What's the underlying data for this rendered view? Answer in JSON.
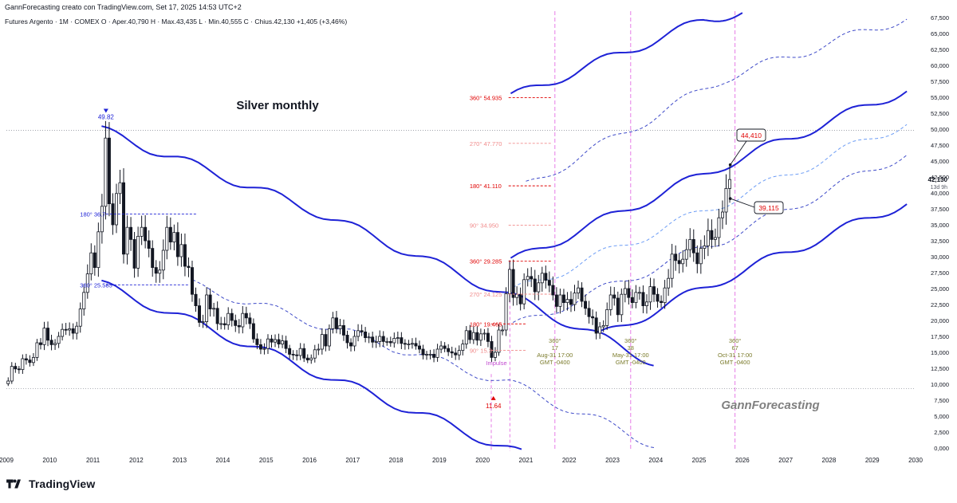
{
  "header": {
    "caption": "GannForecasting creato con TradingView.com, Set 17, 2025 14:53 UTC+2",
    "ohlc": "Futures Argento · 1M · COMEX  O · Aper.40,790  H · Max.43,435  L · Min.40,555  C · Chius.42,130  +1,405 (+3,46%)"
  },
  "branding": {
    "footer": "TradingView",
    "watermark": "GannForecasting"
  },
  "colors": {
    "candle_up": "#ffffff",
    "candle_down": "#131722",
    "channel": "#1e22d6",
    "dashed": "#3d49c8",
    "light_dashed": "#6c9cf5",
    "magenta": "#e67ce6",
    "red_label": "#e00000",
    "pink_label": "#f08a8a",
    "olive": "#7a7a2a"
  },
  "chart_data": {
    "type": "candlestick",
    "title": "Silver monthly",
    "x_axis": {
      "ticks": [
        "2009",
        "2010",
        "2011",
        "2012",
        "2013",
        "2014",
        "2015",
        "2016",
        "2017",
        "2018",
        "2019",
        "2020",
        "2021",
        "2022",
        "2023",
        "2024",
        "2025",
        "2026",
        "2027",
        "2028",
        "2029",
        "2030"
      ],
      "range": [
        2009.0,
        2030.0
      ]
    },
    "y_axis": {
      "ticks": [
        "0,000",
        "2,500",
        "5,000",
        "7,500",
        "10,000",
        "12,500",
        "15,000",
        "17,500",
        "20,000",
        "22,500",
        "25,000",
        "27,500",
        "30,000",
        "32,500",
        "35,000",
        "37,500",
        "40,000",
        "42,500",
        "45,000",
        "47,500",
        "50,000",
        "52,500",
        "55,000",
        "57,500",
        "60,000",
        "62,500",
        "65,000",
        "67,500"
      ],
      "range": [
        -0.5,
        68.5
      ]
    },
    "last_price": {
      "value": "42,130",
      "countdown": "13d 9h"
    },
    "extremes": [
      {
        "label": "49.82",
        "x": 2011.3,
        "y": 49.82,
        "marker": "top"
      },
      {
        "label": "11.64",
        "x": 2020.25,
        "y": 11.64,
        "marker": "bottom"
      }
    ],
    "series_monthly_close": [
      {
        "year": 2009.0,
        "closes": [
          10.5,
          12.8,
          12.4,
          12.3,
          14.0,
          13.8,
          13.4,
          14.2,
          16.5,
          16.2,
          18.8,
          16.9
        ]
      },
      {
        "year": 2010.0,
        "closes": [
          16.2,
          16.4,
          17.5,
          18.6,
          18.5,
          18.7,
          18.0,
          19.1,
          21.8,
          24.4,
          27.3,
          30.6
        ]
      },
      {
        "year": 2011.0,
        "closes": [
          28.3,
          33.9,
          37.9,
          48.6,
          38.3,
          35.0,
          39.9,
          41.6,
          30.4,
          34.6,
          32.7,
          28.2
        ]
      },
      {
        "year": 2012.0,
        "closes": [
          33.2,
          34.6,
          32.5,
          31.3,
          28.3,
          27.4,
          27.9,
          31.0,
          34.6,
          32.3,
          33.8,
          30.0
        ]
      },
      {
        "year": 2013.0,
        "closes": [
          31.9,
          28.5,
          28.3,
          24.1,
          22.3,
          19.7,
          19.8,
          24.0,
          21.8,
          21.9,
          19.5,
          19.5
        ]
      },
      {
        "year": 2014.0,
        "closes": [
          19.3,
          21.1,
          20.0,
          19.2,
          19.0,
          21.1,
          20.4,
          19.5,
          17.1,
          16.2,
          15.5,
          15.6
        ]
      },
      {
        "year": 2015.0,
        "closes": [
          17.1,
          16.6,
          17.0,
          16.3,
          16.8,
          15.6,
          14.7,
          14.6,
          14.5,
          15.6,
          14.1,
          13.8
        ]
      },
      {
        "year": 2016.0,
        "closes": [
          14.1,
          15.4,
          15.5,
          17.8,
          16.0,
          18.7,
          20.4,
          18.7,
          19.2,
          17.7,
          16.5,
          16.0
        ]
      },
      {
        "year": 2017.0,
        "closes": [
          17.5,
          18.4,
          18.2,
          17.3,
          17.4,
          16.6,
          16.7,
          17.5,
          16.7,
          16.7,
          16.5,
          17.2
        ]
      },
      {
        "year": 2018.0,
        "closes": [
          17.3,
          16.4,
          16.3,
          16.3,
          16.4,
          16.0,
          15.5,
          14.6,
          14.7,
          14.7,
          14.2,
          15.5
        ]
      },
      {
        "year": 2019.0,
        "closes": [
          16.0,
          15.6,
          15.1,
          14.9,
          14.6,
          15.3,
          16.3,
          18.4,
          17.0,
          18.1,
          16.9,
          17.9
        ]
      },
      {
        "year": 2020.0,
        "closes": [
          18.0,
          16.7,
          14.2,
          15.0,
          18.5,
          18.5,
          24.2,
          28.0,
          23.6,
          24.1,
          22.6,
          26.4
        ]
      },
      {
        "year": 2021.0,
        "closes": [
          26.9,
          26.5,
          24.5,
          25.9,
          27.4,
          26.3,
          25.5,
          24.0,
          22.2,
          24.0,
          22.8,
          23.3
        ]
      },
      {
        "year": 2022.0,
        "closes": [
          22.5,
          24.3,
          25.1,
          23.0,
          21.9,
          20.6,
          20.4,
          18.0,
          19.0,
          19.2,
          21.7,
          24.0
        ]
      },
      {
        "year": 2023.0,
        "closes": [
          23.5,
          20.9,
          24.1,
          25.0,
          23.6,
          22.8,
          24.4,
          24.4,
          22.3,
          22.9,
          25.3,
          24.1
        ]
      },
      {
        "year": 2024.0,
        "closes": [
          23.0,
          22.8,
          25.1,
          26.6,
          30.4,
          29.4,
          28.9,
          29.6,
          31.1,
          32.7,
          30.6,
          28.9
        ]
      },
      {
        "year": 2025.0,
        "closes": [
          31.3,
          31.7,
          34.1,
          32.7,
          33.0,
          36.1,
          37.0,
          40.7,
          42.1
        ]
      }
    ],
    "gann_levels": [
      {
        "text": "360° 54.935",
        "value": 54.935
      },
      {
        "text": "270° 47.770",
        "value": 47.77
      },
      {
        "text": "180° 41.110",
        "value": 41.11
      },
      {
        "text": "90° 34.950",
        "value": 34.95
      },
      {
        "text": "360° 29.285",
        "value": 29.285
      },
      {
        "text": "270° 24.125",
        "value": 24.125
      },
      {
        "text": "180° 19.465",
        "value": 19.465
      },
      {
        "text": "90° 15.3",
        "value": 15.3
      },
      {
        "text": "180° 36.7",
        "value": 36.7
      },
      {
        "text": "360° 25.585",
        "value": 25.585
      }
    ],
    "time_cycles": [
      {
        "angle": "360°",
        "count": "17",
        "date": "Aug-31 17:00",
        "tz": "GMT -0400",
        "x": 2021.67
      },
      {
        "angle": "360°",
        "count": "38",
        "date": "May-31 17:00",
        "tz": "GMT -0400",
        "x": 2023.42
      },
      {
        "angle": "360°",
        "count": "67",
        "date": "Oct-31 17:00",
        "tz": "GMT -0400",
        "x": 2025.83
      }
    ],
    "impulse_label": "Impulse",
    "callouts": [
      {
        "label": "44,410",
        "value": 44.41
      },
      {
        "label": "39,115",
        "value": 39.115
      }
    ],
    "channels": {
      "down_upper": [
        [
          2011.2,
          49.8
        ],
        [
          2016.0,
          37.5
        ],
        [
          2020.9,
          23.0
        ],
        [
          2023.95,
          13.5
        ]
      ],
      "down_lower": [
        [
          2011.2,
          25.6
        ],
        [
          2016.0,
          12.3
        ],
        [
          2020.9,
          -1.0
        ]
      ],
      "down_mid_dashed": [
        [
          2013.3,
          25.6
        ],
        [
          2020.6,
          10.2
        ],
        [
          2024.0,
          0.5
        ]
      ],
      "up_top": [
        [
          2020.65,
          55.0
        ],
        [
          2025.1,
          67.0
        ],
        [
          2026.0,
          68.5
        ]
      ],
      "up_mid_upper": [
        [
          2020.65,
          29.2
        ],
        [
          2025.6,
          44.4
        ],
        [
          2029.8,
          56.2
        ]
      ],
      "up_light_dashed": [
        [
          2020.7,
          24.5
        ],
        [
          2025.6,
          38.5
        ],
        [
          2029.8,
          51.0
        ]
      ],
      "up_mid_lower": [
        [
          2020.7,
          19.0
        ],
        [
          2025.6,
          32.8
        ],
        [
          2029.8,
          46.2
        ]
      ],
      "up_bottom": [
        [
          2022.7,
          17.5
        ],
        [
          2025.6,
          26.6
        ],
        [
          2029.8,
          38.5
        ]
      ],
      "up_dashed_top_outer": [
        [
          2021.0,
          41.1
        ],
        [
          2025.6,
          58.0
        ],
        [
          2029.8,
          67.5
        ]
      ]
    }
  }
}
